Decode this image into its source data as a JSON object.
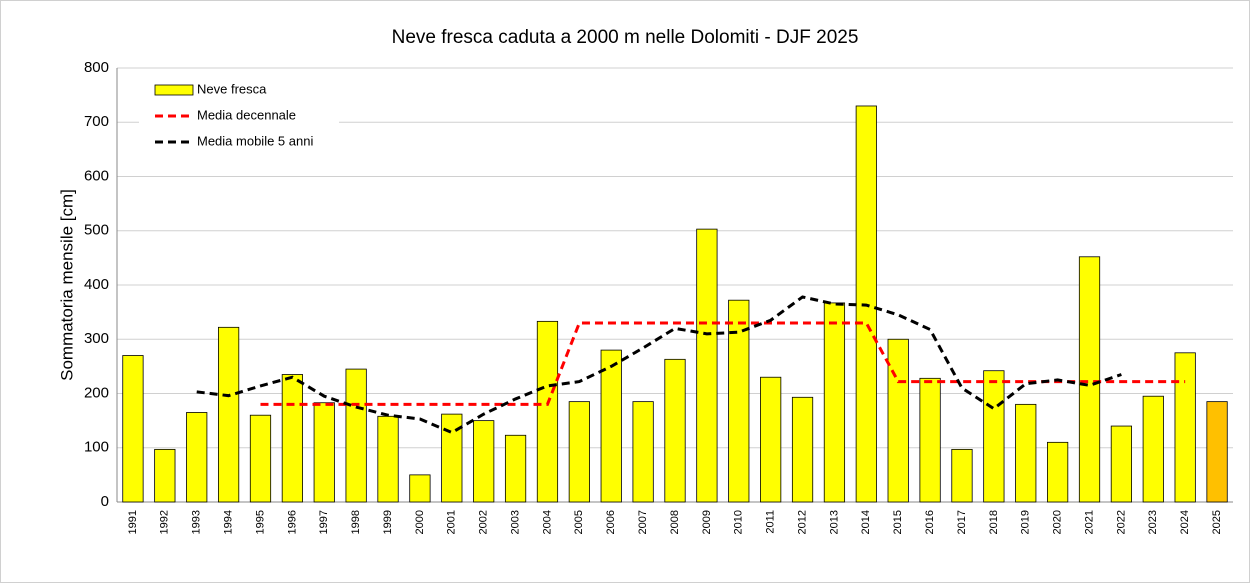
{
  "chart_data": {
    "type": "bar",
    "title": "Neve fresca caduta a 2000 m nelle Dolomiti - DJF 2025",
    "y_label": "Sommatoria mensile  [cm]",
    "categories": [
      "1991",
      "1992",
      "1993",
      "1994",
      "1995",
      "1996",
      "1997",
      "1998",
      "1999",
      "2000",
      "2001",
      "2002",
      "2003",
      "2004",
      "2005",
      "2006",
      "2007",
      "2008",
      "2009",
      "2010",
      "2011",
      "2012",
      "2013",
      "2014",
      "2015",
      "2016",
      "2017",
      "2018",
      "2019",
      "2020",
      "2021",
      "2022",
      "2023",
      "2024",
      "2025"
    ],
    "series": [
      {
        "name": "Neve fresca",
        "type": "bar",
        "color": "#ffff00",
        "colors": [
          "#ffff00",
          "#ffff00",
          "#ffff00",
          "#ffff00",
          "#ffff00",
          "#ffff00",
          "#ffff00",
          "#ffff00",
          "#ffff00",
          "#ffff00",
          "#ffff00",
          "#ffff00",
          "#ffff00",
          "#ffff00",
          "#ffff00",
          "#ffff00",
          "#ffff00",
          "#ffff00",
          "#ffff00",
          "#ffff00",
          "#ffff00",
          "#ffff00",
          "#ffff00",
          "#ffff00",
          "#ffff00",
          "#ffff00",
          "#ffff00",
          "#ffff00",
          "#ffff00",
          "#ffff00",
          "#ffff00",
          "#ffff00",
          "#ffff00",
          "#ffff00",
          "#ffc000"
        ],
        "values": [
          270,
          97,
          165,
          322,
          160,
          235,
          183,
          245,
          158,
          50,
          162,
          150,
          123,
          333,
          185,
          280,
          185,
          263,
          503,
          372,
          230,
          193,
          367,
          730,
          300,
          228,
          97,
          242,
          180,
          110,
          452,
          140,
          195,
          275,
          185
        ]
      },
      {
        "name": "Media decennale",
        "type": "line",
        "color": "#ff0000",
        "values": [
          null,
          null,
          null,
          null,
          180,
          180,
          180,
          180,
          180,
          180,
          180,
          180,
          180,
          180,
          330,
          330,
          330,
          330,
          330,
          330,
          330,
          330,
          330,
          330,
          222,
          222,
          222,
          222,
          222,
          222,
          222,
          222,
          222,
          222,
          null
        ]
      },
      {
        "name": "Media mobile 5 anni",
        "type": "line",
        "color": "#000000",
        "values": [
          null,
          null,
          203,
          196,
          214,
          230,
          195,
          175,
          160,
          153,
          128,
          162,
          190,
          214,
          222,
          250,
          284,
          320,
          310,
          313,
          335,
          378,
          365,
          363,
          345,
          318,
          210,
          172,
          218,
          225,
          215,
          235,
          null,
          null,
          null
        ]
      }
    ],
    "ylim": [
      0,
      800
    ],
    "yticks": [
      0,
      100,
      200,
      300,
      400,
      500,
      600,
      700,
      800
    ],
    "grid": true,
    "legend": "top-left"
  }
}
